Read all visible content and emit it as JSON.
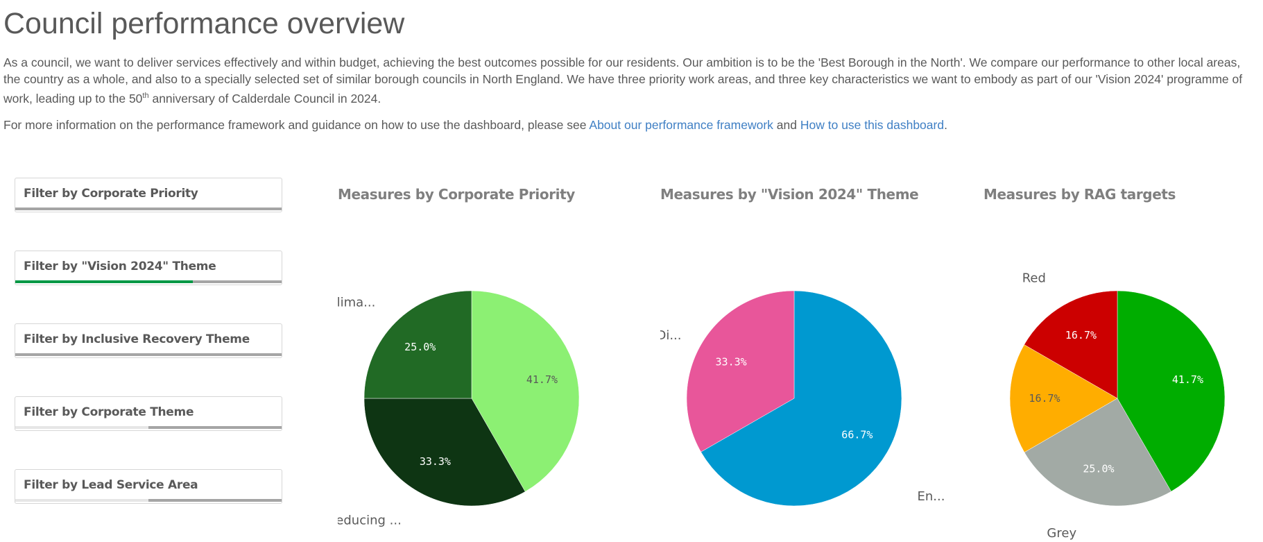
{
  "header": {
    "title": "Council performance overview",
    "intro": "As a council, we want to deliver services effectively and within budget, achieving the best outcomes possible for our residents. Our ambition is to be the 'Best Borough in the North'. We compare our performance to other local areas, the country as a whole, and also to a specially selected set of similar borough councils in North England. We have three priority work areas, and three key characteristics we want to embody as part of our 'Vision 2024' programme of work, leading up to the 50",
    "intro_sup": "th",
    "intro_end": " anniversary of Calderdale Council in 2024.",
    "more_info_prefix": "For more information on the performance framework and guidance on how to use the dashboard, please see ",
    "link_framework": "About our performance framework",
    "more_info_and": " and ",
    "link_guide": "How to use this dashboard",
    "more_info_suffix": "."
  },
  "filters": [
    {
      "label": "Filter by Corporate Priority",
      "bar": [
        {
          "from": 0,
          "to": 1,
          "color": "#a5a5a5"
        }
      ]
    },
    {
      "label": "Filter by \"Vision 2024\" Theme",
      "bar": [
        {
          "from": 0,
          "to": 0.667,
          "color": "#009845"
        },
        {
          "from": 0.667,
          "to": 1,
          "color": "#a5a5a5"
        }
      ]
    },
    {
      "label": "Filter by Inclusive Recovery Theme",
      "bar": [
        {
          "from": 0,
          "to": 1,
          "color": "#a5a5a5"
        }
      ]
    },
    {
      "label": "Filter by Corporate Theme",
      "bar": [
        {
          "from": 0.5,
          "to": 1,
          "color": "#a5a5a5"
        }
      ]
    },
    {
      "label": "Filter by Lead Service Area",
      "bar": [
        {
          "from": 0.5,
          "to": 1,
          "color": "#a5a5a5"
        }
      ]
    }
  ],
  "chart_data": [
    {
      "type": "pie",
      "title": "Measures by Corporate Priority",
      "slices": [
        {
          "label": "",
          "value": 41.7,
          "display": "41.7%",
          "color": "#8cf073",
          "text_color": "#595959"
        },
        {
          "label": "Reducing ...",
          "value": 33.3,
          "display": "33.3%",
          "color": "#0e3513",
          "text_color": "#ffffff"
        },
        {
          "label": "Clima...",
          "value": 25.0,
          "display": "25.0%",
          "color": "#216a25",
          "text_color": "#ffffff"
        }
      ]
    },
    {
      "type": "pie",
      "title": "Measures by \"Vision 2024\" Theme",
      "slices": [
        {
          "label": "En...",
          "value": 66.7,
          "display": "66.7%",
          "color": "#0099d0",
          "text_color": "#ffffff"
        },
        {
          "label": "Di...",
          "value": 33.3,
          "display": "33.3%",
          "color": "#e8569a",
          "text_color": "#ffffff"
        }
      ]
    },
    {
      "type": "pie",
      "title": "Measures by RAG targets",
      "slices": [
        {
          "label": "",
          "value": 41.7,
          "display": "41.7%",
          "color": "#00ad00",
          "text_color": "#ffffff"
        },
        {
          "label": "Grey",
          "value": 25.0,
          "display": "25.0%",
          "color": "#a2aaa5",
          "text_color": "#ffffff"
        },
        {
          "label": "",
          "value": 16.7,
          "display": "16.7%",
          "color": "#ffad00",
          "text_color": "#595959"
        },
        {
          "label": "Red",
          "value": 16.7,
          "display": "16.7%",
          "color": "#cc0000",
          "text_color": "#ffffff"
        }
      ]
    }
  ]
}
